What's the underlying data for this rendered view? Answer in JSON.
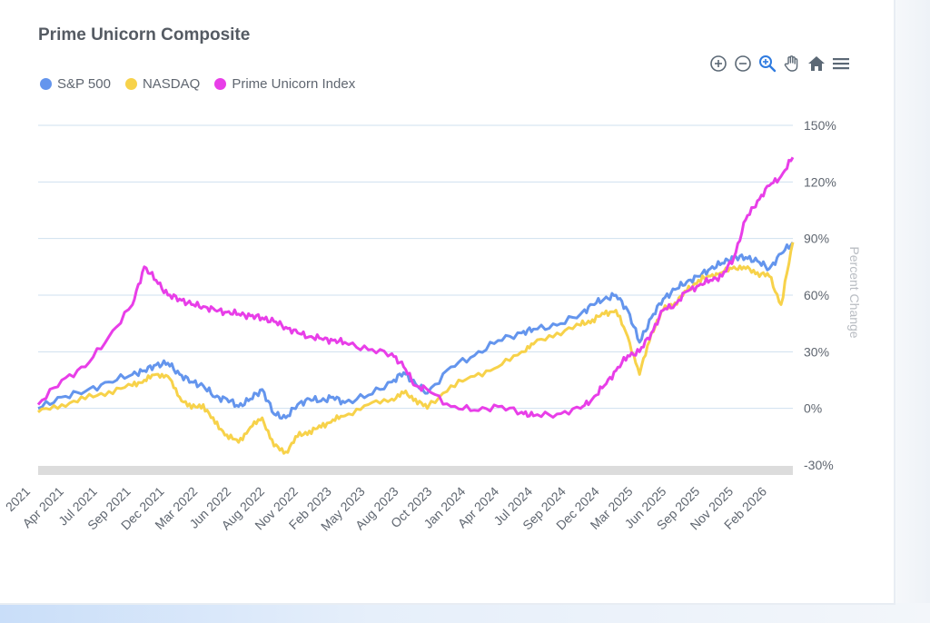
{
  "chart_data": {
    "type": "line",
    "title": "Prime Unicorn Composite",
    "ylabel": "Percent Change",
    "xlabel": "",
    "yticks": [
      "150%",
      "120%",
      "90%",
      "60%",
      "30%",
      "0%",
      "-30%"
    ],
    "ylim": [
      -30,
      150
    ],
    "xlim": [
      "2021-01",
      "2026-05"
    ],
    "xticks": [
      "2021",
      "Apr 2021",
      "Jul 2021",
      "Sep 2021",
      "Dec 2021",
      "Mar 2022",
      "Jun 2022",
      "Aug 2022",
      "Nov 2022",
      "Feb 2023",
      "May 2023",
      "Aug 2023",
      "Oct 2023",
      "Jan 2024",
      "Apr 2024",
      "Jul 2024",
      "Sep 2024",
      "Dec 2024",
      "Mar 2025",
      "Jun 2025",
      "Sep 2025",
      "Nov 2025",
      "Feb 2026"
    ],
    "x": [
      "2021-01",
      "2021-03",
      "2021-05",
      "2021-07",
      "2021-09",
      "2021-10",
      "2021-11",
      "2021-12",
      "2022-01",
      "2022-02",
      "2022-03",
      "2022-04",
      "2022-05",
      "2022-06",
      "2022-07",
      "2022-08",
      "2022-09",
      "2022-10",
      "2022-11",
      "2022-12",
      "2023-01",
      "2023-02",
      "2023-03",
      "2023-05",
      "2023-07",
      "2023-08",
      "2023-09",
      "2023-10",
      "2023-12",
      "2024-02",
      "2024-04",
      "2024-06",
      "2024-07",
      "2024-09",
      "2024-11",
      "2024-12",
      "2025-01",
      "2025-02",
      "2025-03",
      "2025-04",
      "2025-05",
      "2025-06",
      "2025-07",
      "2025-08",
      "2025-09",
      "2025-10",
      "2025-11",
      "2025-12",
      "2026-01",
      "2026-02",
      "2026-03",
      "2026-04",
      "2026-05"
    ],
    "series": [
      {
        "name": "S&P 500",
        "color": "#6495ed",
        "values": [
          0,
          6,
          9,
          14,
          18,
          20,
          23,
          24,
          18,
          14,
          12,
          6,
          5,
          1,
          5,
          10,
          -3,
          -5,
          2,
          5,
          4,
          6,
          3,
          7,
          14,
          19,
          13,
          8,
          22,
          28,
          36,
          40,
          42,
          44,
          50,
          55,
          58,
          60,
          52,
          35,
          48,
          58,
          63,
          67,
          70,
          74,
          77,
          80,
          80,
          78,
          74,
          82,
          88
        ]
      },
      {
        "name": "NASDAQ",
        "color": "#f7d24a",
        "values": [
          -2,
          2,
          5,
          9,
          12,
          15,
          18,
          17,
          6,
          0,
          2,
          -8,
          -14,
          -18,
          -10,
          -5,
          -20,
          -23,
          -15,
          -12,
          -10,
          -6,
          -4,
          2,
          5,
          8,
          5,
          0,
          12,
          17,
          22,
          30,
          34,
          40,
          44,
          47,
          50,
          52,
          38,
          18,
          40,
          52,
          56,
          62,
          68,
          70,
          72,
          75,
          74,
          72,
          70,
          55,
          88
        ]
      },
      {
        "name": "Prime Unicorn Index",
        "color": "#e83ee8",
        "values": [
          2,
          15,
          22,
          38,
          55,
          75,
          68,
          60,
          58,
          55,
          54,
          52,
          51,
          50,
          49,
          48,
          46,
          43,
          40,
          38,
          37,
          36,
          35,
          31,
          29,
          22,
          12,
          10,
          1,
          -1,
          1,
          -2,
          -4,
          -3,
          0,
          5,
          12,
          20,
          28,
          30,
          40,
          52,
          55,
          62,
          65,
          68,
          70,
          80,
          100,
          110,
          118,
          123,
          133
        ]
      }
    ],
    "grid": true,
    "legend_position": "top-left"
  }
}
